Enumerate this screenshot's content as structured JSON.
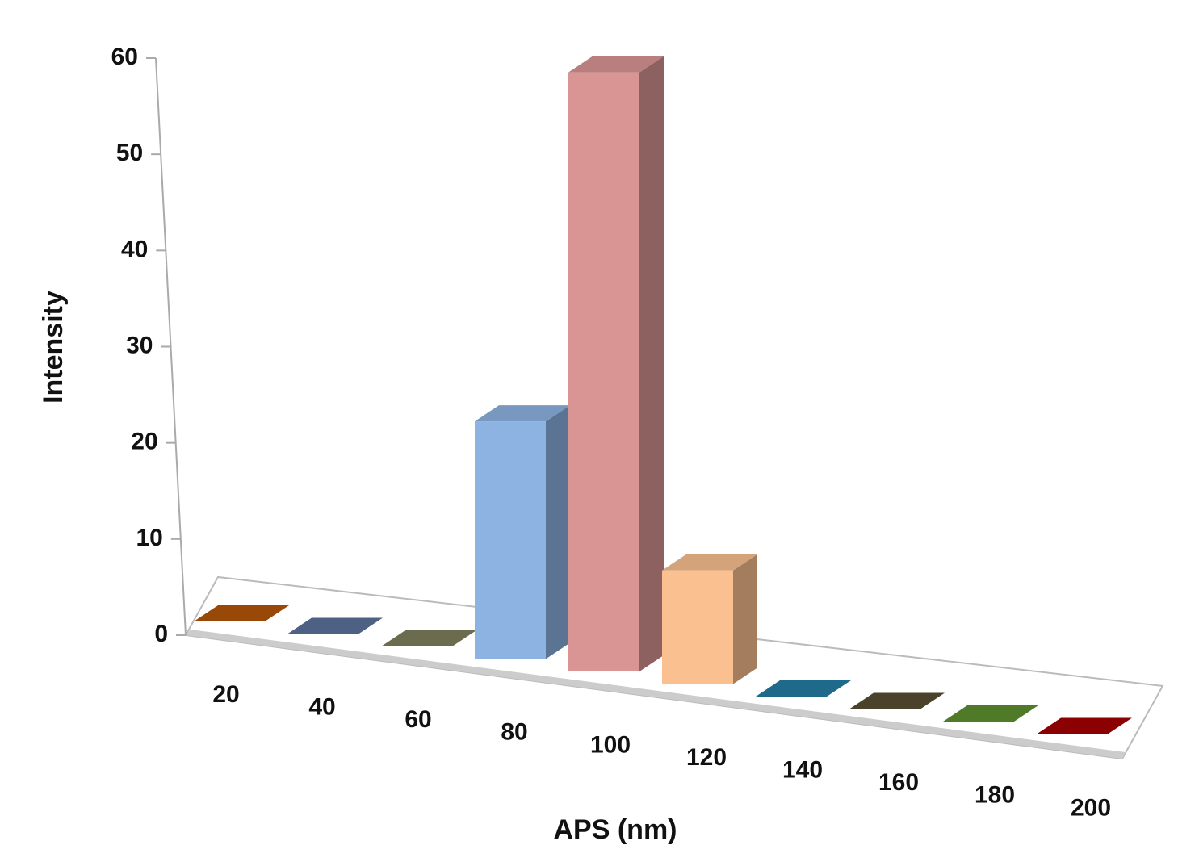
{
  "chart_data": {
    "type": "bar3d",
    "xlabel": "APS (nm)",
    "ylabel": "Intensity",
    "categories": [
      "20",
      "40",
      "60",
      "80",
      "100",
      "120",
      "140",
      "160",
      "180",
      "200"
    ],
    "values": [
      0,
      0,
      0,
      23,
      58,
      11,
      0,
      0,
      0,
      0
    ],
    "colors": [
      "#984807",
      "#4f6183",
      "#6b6b50",
      "#8db3e2",
      "#d99594",
      "#fac090",
      "#1f6a8a",
      "#4a422a",
      "#4f7a28",
      "#8b0000"
    ],
    "ylim": [
      0,
      60
    ],
    "yticks": [
      0,
      10,
      20,
      30,
      40,
      50,
      60
    ]
  }
}
